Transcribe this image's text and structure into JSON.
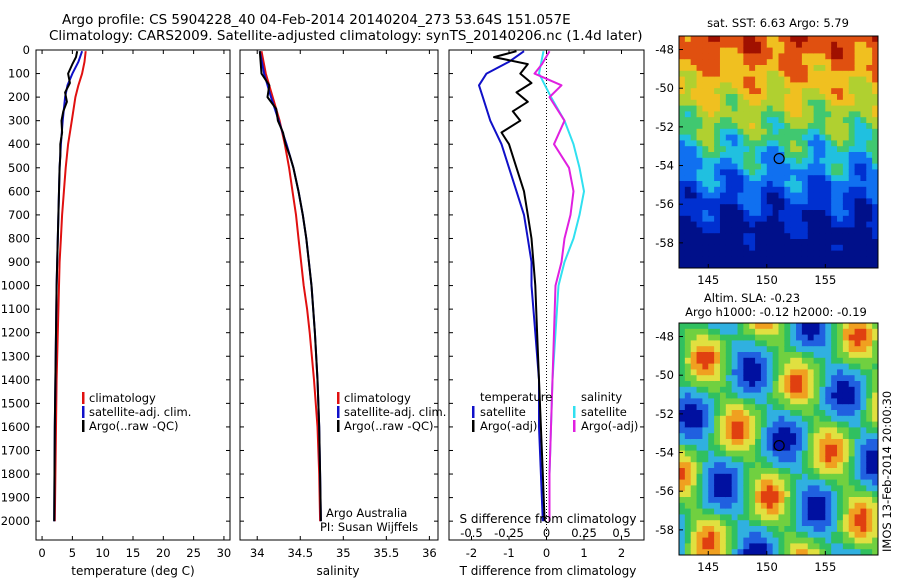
{
  "header": {
    "line1": "Argo profile: CS 5904228_40 04-Feb-2014 20140204_273 53.64S 151.057E",
    "line2": "Climatology: CARS2009. Satellite-adjusted climatology: synTS_20140206.nc (1.4d later)"
  },
  "map_top": {
    "title": "sat. SST: 6.63 Argo: 5.79"
  },
  "map_bottom": {
    "title1": "Altim. SLA: -0.23",
    "title2": "Argo h1000: -0.12 h2000: -0.19"
  },
  "side_label": "IMOS 13-Feb-2014 20:00:30",
  "colors": {
    "clim": "#e01010",
    "adj": "#1010c8",
    "argo": "#000000",
    "sat_s": "#30e0f0",
    "argo_s": "#e020e0"
  },
  "chart_data": [
    {
      "type": "line",
      "name": "temperature",
      "xlabel": "temperature (deg C)",
      "ylabel": "",
      "xlim": [
        -1,
        31
      ],
      "ylim": [
        2080,
        0
      ],
      "xticks": [
        0,
        5,
        10,
        15,
        20,
        25,
        30
      ],
      "yticks": [
        0,
        100,
        200,
        300,
        400,
        500,
        600,
        700,
        800,
        900,
        1000,
        1100,
        1200,
        1300,
        1400,
        1500,
        1600,
        1700,
        1800,
        1900,
        2000
      ],
      "legend": [
        "climatology",
        "satellite-adj. clim.",
        "Argo(..raw -QC)"
      ],
      "series": [
        {
          "name": "climatology",
          "color_key": "clim",
          "depth": [
            5,
            50,
            100,
            150,
            200,
            300,
            400,
            500,
            600,
            700,
            800,
            900,
            1000,
            1200,
            1400,
            1600,
            1800,
            2000
          ],
          "values": [
            7.2,
            7.0,
            6.6,
            6.0,
            5.5,
            4.9,
            4.3,
            3.9,
            3.6,
            3.3,
            3.1,
            2.9,
            2.8,
            2.6,
            2.4,
            2.3,
            2.2,
            2.1
          ]
        },
        {
          "name": "satellite-adj. clim.",
          "color_key": "adj",
          "depth": [
            5,
            50,
            100,
            150,
            200,
            300,
            400,
            500,
            600,
            700,
            800,
            900,
            1000,
            1200,
            1400,
            1600,
            1800,
            2000
          ],
          "values": [
            6.6,
            6.0,
            5.0,
            4.2,
            3.8,
            3.4,
            3.1,
            2.9,
            2.8,
            2.7,
            2.6,
            2.5,
            2.4,
            2.3,
            2.2,
            2.1,
            2.05,
            2.0
          ]
        },
        {
          "name": "Argo(..raw -QC)",
          "color_key": "argo",
          "depth": [
            5,
            30,
            60,
            100,
            140,
            180,
            220,
            260,
            300,
            350,
            400,
            450,
            500,
            600,
            700,
            800,
            900,
            1000,
            1200,
            1400,
            1600,
            1800,
            2000
          ],
          "values": [
            5.8,
            5.6,
            5.0,
            4.3,
            4.6,
            3.8,
            4.1,
            3.5,
            3.2,
            3.3,
            3.0,
            3.0,
            2.9,
            2.8,
            2.7,
            2.6,
            2.5,
            2.4,
            2.3,
            2.2,
            2.1,
            2.05,
            2.0
          ]
        }
      ]
    },
    {
      "type": "line",
      "name": "salinity",
      "xlabel": "salinity",
      "xlim": [
        33.8,
        36.1
      ],
      "ylim": [
        2080,
        0
      ],
      "xticks": [
        34,
        34.5,
        35,
        35.5,
        36
      ],
      "legend": [
        "climatology",
        "satellite-adj. clim.",
        "Argo(..raw -QC)"
      ],
      "annotations": [
        "Argo Australia",
        "PI: Susan Wijffels"
      ],
      "series": [
        {
          "name": "climatology",
          "color_key": "clim",
          "depth": [
            5,
            100,
            200,
            300,
            400,
            500,
            600,
            700,
            800,
            900,
            1000,
            1100,
            1200,
            1400,
            1600,
            1800,
            2000
          ],
          "values": [
            34.05,
            34.1,
            34.18,
            34.26,
            34.32,
            34.37,
            34.41,
            34.45,
            34.48,
            34.51,
            34.54,
            34.58,
            34.61,
            34.66,
            34.7,
            34.72,
            34.73
          ]
        },
        {
          "name": "satellite-adj. clim.",
          "color_key": "adj",
          "depth": [
            5,
            100,
            200,
            300,
            400,
            500,
            600,
            700,
            800,
            900,
            1000,
            1100,
            1200,
            1400,
            1600,
            1800,
            2000
          ],
          "values": [
            34.03,
            34.08,
            34.16,
            34.25,
            34.34,
            34.42,
            34.48,
            34.53,
            34.57,
            34.6,
            34.63,
            34.65,
            34.67,
            34.7,
            34.72,
            34.73,
            34.74
          ]
        },
        {
          "name": "Argo(..raw -QC)",
          "color_key": "argo",
          "depth": [
            5,
            100,
            150,
            200,
            250,
            300,
            350,
            400,
            450,
            500,
            600,
            700,
            800,
            900,
            1000,
            1200,
            1400,
            1600,
            1800,
            2000
          ],
          "values": [
            34.03,
            34.05,
            34.14,
            34.12,
            34.22,
            34.24,
            34.3,
            34.33,
            34.38,
            34.42,
            34.48,
            34.53,
            34.57,
            34.6,
            34.63,
            34.67,
            34.7,
            34.72,
            34.73,
            34.74
          ]
        }
      ]
    },
    {
      "type": "line",
      "name": "difference",
      "xlabel": "T difference from climatology",
      "xlabel2": "S difference from climatology",
      "xlim": [
        -2.6,
        2.6
      ],
      "ylim": [
        2080,
        0
      ],
      "xticks": [
        -2,
        -1,
        0,
        1,
        2
      ],
      "xticks2": [
        -0.5,
        -0.25,
        0,
        0.25,
        0.5
      ],
      "legend_left_title": "temperature",
      "legend_right_title": "salinity",
      "legend_left": [
        "satellite",
        "Argo(-adj)"
      ],
      "legend_right": [
        "satellite",
        "Argo(-adj)"
      ],
      "series": [
        {
          "name": "temperature satellite",
          "color_key": "adj",
          "depth": [
            5,
            50,
            100,
            150,
            200,
            300,
            400,
            500,
            600,
            700,
            800,
            900,
            1000,
            1200,
            1400,
            1600,
            1800,
            2000
          ],
          "values": [
            -0.6,
            -1.0,
            -1.6,
            -1.8,
            -1.7,
            -1.5,
            -1.2,
            -1.0,
            -0.8,
            -0.6,
            -0.5,
            -0.4,
            -0.4,
            -0.3,
            -0.2,
            -0.2,
            -0.15,
            -0.1
          ]
        },
        {
          "name": "temperature Argo(-adj)",
          "color_key": "argo",
          "depth": [
            5,
            30,
            60,
            100,
            140,
            180,
            220,
            260,
            300,
            350,
            400,
            500,
            600,
            700,
            800,
            900,
            1000,
            1200,
            1400,
            1600,
            1800,
            2000
          ],
          "values": [
            -0.8,
            -1.4,
            -0.5,
            -0.7,
            -0.4,
            -0.8,
            -0.5,
            -0.9,
            -0.7,
            -1.2,
            -1.0,
            -0.8,
            -0.6,
            -0.5,
            -0.4,
            -0.35,
            -0.3,
            -0.25,
            -0.2,
            -0.15,
            -0.1,
            -0.05
          ]
        },
        {
          "name": "salinity satellite",
          "color_key": "sat_s",
          "depth": [
            5,
            100,
            200,
            300,
            400,
            500,
            600,
            700,
            800,
            900,
            1000,
            1200,
            1400,
            1600,
            1800,
            2000
          ],
          "values": [
            -0.02,
            -0.05,
            0.03,
            0.12,
            0.18,
            0.22,
            0.25,
            0.22,
            0.18,
            0.12,
            0.08,
            0.06,
            0.04,
            0.03,
            0.02,
            0.02
          ]
        },
        {
          "name": "salinity Argo(-adj)",
          "color_key": "argo_s",
          "depth": [
            5,
            60,
            100,
            150,
            200,
            300,
            400,
            500,
            600,
            700,
            800,
            900,
            1000,
            1200,
            1400,
            1600,
            1800,
            2000
          ],
          "values": [
            0.02,
            -0.03,
            -0.08,
            0.1,
            0.02,
            0.12,
            0.05,
            0.15,
            0.18,
            0.16,
            0.12,
            0.1,
            0.06,
            0.05,
            0.04,
            0.03,
            0.02,
            0.02
          ]
        }
      ]
    },
    {
      "type": "heatmap",
      "name": "sst_map",
      "title": "sat. SST: 6.63 Argo: 5.79",
      "xticks": [
        145,
        150,
        155
      ],
      "yticks": [
        -48,
        -50,
        -52,
        -54,
        -56,
        -58
      ],
      "xlim": [
        142.5,
        159.5
      ],
      "ylim": [
        -59.3,
        -47.3
      ],
      "marker": {
        "lon": 151.057,
        "lat": -53.64
      }
    },
    {
      "type": "heatmap",
      "name": "sla_map",
      "title": "Altim. SLA: -0.23",
      "xticks": [
        145,
        150,
        155
      ],
      "yticks": [
        -48,
        -50,
        -52,
        -54,
        -56,
        -58
      ],
      "xlim": [
        142.5,
        159.5
      ],
      "ylim": [
        -59.3,
        -47.3
      ],
      "marker": {
        "lon": 151.057,
        "lat": -53.64
      }
    }
  ]
}
